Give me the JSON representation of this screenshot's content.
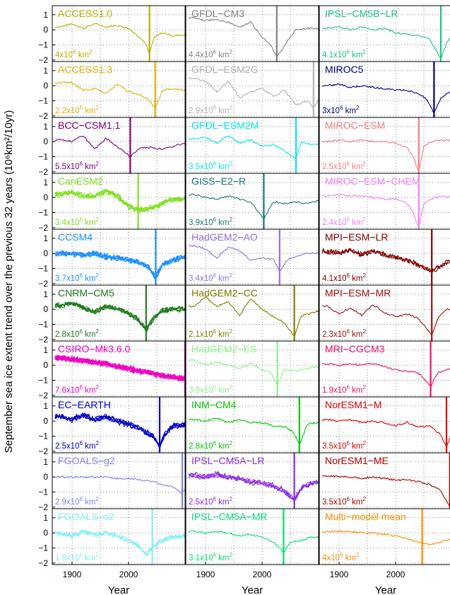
{
  "figure": {
    "ylabel": "September sea ice extent trend over the previous 32 years (10⁶km²/10yr)",
    "xlabel": "Year"
  },
  "chart_data": {
    "type": "line",
    "layout": "small-multiples",
    "grid": true,
    "ylabel": "September sea ice extent trend over the previous 32 years (10⁶km²/10yr)",
    "xlabel": "Year",
    "xlim": [
      1865,
      2100
    ],
    "ylim": [
      -2.1,
      1.6
    ],
    "xticks": [
      1900,
      2000
    ],
    "yticks": [
      1,
      0,
      -1,
      -2
    ],
    "panels": [
      {
        "name": "ACCESS1.0",
        "extent": "4x10⁶ km²",
        "color": "#b5b000",
        "ensemble": 1,
        "year": 2037,
        "x": [
          1880,
          1900,
          1920,
          1940,
          1960,
          1980,
          2000,
          2020,
          2030,
          2037,
          2045,
          2060,
          2080,
          2100
        ],
        "y": [
          0.2,
          0.4,
          0.1,
          0.4,
          0.2,
          0.3,
          0.1,
          -0.5,
          -0.9,
          -1.6,
          -0.5,
          -0.2,
          -0.4,
          -0.3
        ]
      },
      {
        "name": "GFDL−CM3",
        "extent": "4.4x10⁶ km²",
        "color": "#808080",
        "ensemble": 1,
        "year": 2026,
        "x": [
          1880,
          1900,
          1920,
          1940,
          1960,
          1980,
          2000,
          2015,
          2026,
          2040,
          2060,
          2080,
          2100
        ],
        "y": [
          0.8,
          0.6,
          0.7,
          0.5,
          0.2,
          0.5,
          -0.5,
          -1.0,
          -1.8,
          -1.0,
          0.0,
          0.1,
          0.1
        ]
      },
      {
        "name": "IPSL−CM5B−LR",
        "extent": "4.1x10⁶ km²",
        "color": "#1fc088",
        "ensemble": 1,
        "year": 2080,
        "x": [
          1880,
          1900,
          1920,
          1940,
          1960,
          1980,
          2000,
          2020,
          2040,
          2060,
          2080,
          2090,
          2100
        ],
        "y": [
          0.1,
          0.2,
          0.0,
          0.2,
          0.0,
          0.1,
          -0.2,
          -0.3,
          -0.4,
          -0.6,
          -1.9,
          -0.9,
          -0.4
        ]
      },
      {
        "name": "ACCESS1.3",
        "extent": "2.2x10⁶ km²",
        "color": "#e0b000",
        "ensemble": 1,
        "year": 2047,
        "x": [
          1880,
          1900,
          1920,
          1940,
          1960,
          1980,
          2000,
          2020,
          2035,
          2047,
          2060,
          2080,
          2100
        ],
        "y": [
          0.2,
          0.2,
          -0.3,
          -0.2,
          -0.5,
          0.1,
          -0.4,
          -0.6,
          -0.9,
          -1.5,
          -0.3,
          -0.2,
          -0.3
        ]
      },
      {
        "name": "GFDL−ESM2G",
        "extent": "2.9x10⁶ km²",
        "color": "#b0b0b0",
        "ensemble": 1,
        "year": 2091,
        "x": [
          1880,
          1900,
          1920,
          1940,
          1960,
          1980,
          2000,
          2020,
          2040,
          2060,
          2080,
          2091,
          2100
        ],
        "y": [
          0.5,
          0.3,
          -0.4,
          0.3,
          -0.8,
          -0.4,
          -0.2,
          -0.7,
          -0.3,
          -1.3,
          -1.0,
          -1.5,
          -0.9
        ]
      },
      {
        "name": "MIROC5",
        "extent": "3x10⁶ km²",
        "color": "#000080",
        "ensemble": 1,
        "year": 2068,
        "x": [
          1880,
          1900,
          1920,
          1940,
          1960,
          1980,
          2000,
          2020,
          2040,
          2055,
          2068,
          2080,
          2100
        ],
        "y": [
          0.0,
          0.1,
          -0.1,
          0.0,
          -0.1,
          -0.2,
          -0.3,
          -0.3,
          -0.5,
          -0.9,
          -1.8,
          -0.8,
          -0.3
        ]
      },
      {
        "name": "BCC−CSM1.1",
        "extent": "5.5x10⁶ km²",
        "color": "#800080",
        "ensemble": 1,
        "year": 2003,
        "x": [
          1880,
          1900,
          1920,
          1940,
          1960,
          1980,
          2003,
          2020,
          2040,
          2060,
          2080,
          2100
        ],
        "y": [
          0.1,
          0.0,
          0.4,
          -0.5,
          0.2,
          -0.3,
          -1.0,
          -0.4,
          -0.4,
          -0.5,
          -0.3,
          -0.1
        ]
      },
      {
        "name": "GFDL−ESM2M",
        "extent": "3.5x10⁶ km²",
        "color": "#00e8e8",
        "ensemble": 1,
        "year": 2060,
        "x": [
          1880,
          1900,
          1920,
          1940,
          1960,
          1980,
          2000,
          2020,
          2040,
          2060,
          2070,
          2085,
          2100
        ],
        "y": [
          0.2,
          0.3,
          -0.1,
          0.4,
          -0.1,
          0.1,
          -0.3,
          -0.2,
          -0.6,
          -1.1,
          0.0,
          -0.2,
          -0.2
        ]
      },
      {
        "name": "MIROC−ESM",
        "extent": "2.5x10⁶ km²",
        "color": "#f08080",
        "ensemble": 1,
        "year": 2041,
        "x": [
          1880,
          1900,
          1920,
          1940,
          1960,
          1980,
          2000,
          2020,
          2030,
          2041,
          2050,
          2070,
          2100
        ],
        "y": [
          0.0,
          0.1,
          0.0,
          0.1,
          0.0,
          0.0,
          -0.1,
          -0.4,
          -0.9,
          -2.0,
          -0.3,
          0.1,
          0.1
        ]
      },
      {
        "name": "CanESM2",
        "extent": "3.4x10⁶ km²",
        "color": "#80e020",
        "ensemble": 5,
        "year": 2017,
        "x": [
          1880,
          1900,
          1920,
          1940,
          1960,
          1980,
          2000,
          2017,
          2030,
          2050,
          2070,
          2100
        ],
        "y": [
          0.2,
          0.3,
          0.1,
          0.1,
          0.4,
          0.1,
          -0.6,
          -0.8,
          -0.8,
          -0.6,
          -0.2,
          -0.1
        ]
      },
      {
        "name": "GISS−E2−R",
        "extent": "3.9x10⁶ km²",
        "color": "#1a7878",
        "ensemble": 1,
        "year": 2003,
        "x": [
          1880,
          1900,
          1920,
          1940,
          1960,
          1980,
          2003,
          2020,
          2040,
          2060,
          2080,
          2100
        ],
        "y": [
          0.2,
          0.0,
          -0.1,
          0.1,
          -0.1,
          -0.3,
          -1.4,
          -0.3,
          -0.4,
          -0.3,
          -0.4,
          -0.2
        ]
      },
      {
        "name": "MIROC−ESM−CHEM",
        "extent": "2.4x10⁶ km²",
        "color": "#f080f0",
        "ensemble": 1,
        "year": 2041,
        "x": [
          1880,
          1900,
          1920,
          1940,
          1960,
          1980,
          2000,
          2020,
          2030,
          2041,
          2050,
          2070,
          2100
        ],
        "y": [
          0.1,
          0.2,
          0.1,
          0.1,
          0.0,
          -0.1,
          -0.1,
          -0.4,
          -0.9,
          -2.0,
          -0.4,
          0.0,
          0.1
        ]
      },
      {
        "name": "CCSM4",
        "extent": "3.7x10⁶ km²",
        "color": "#1e90ff",
        "ensemble": 6,
        "year": 2048,
        "x": [
          1880,
          1900,
          1920,
          1940,
          1960,
          1980,
          2000,
          2020,
          2035,
          2048,
          2060,
          2080,
          2100
        ],
        "y": [
          0.0,
          0.0,
          -0.1,
          0.0,
          -0.2,
          -0.3,
          -0.4,
          -0.6,
          -0.9,
          -1.6,
          -0.7,
          -0.4,
          -0.2
        ]
      },
      {
        "name": "HadGEM2−AO",
        "extent": "3.4x10⁶ km²",
        "color": "#9370db",
        "ensemble": 1,
        "year": 2031,
        "x": [
          1880,
          1900,
          1920,
          1940,
          1960,
          1980,
          2000,
          2020,
          2031,
          2045,
          2060,
          2080,
          2100
        ],
        "y": [
          0.5,
          0.3,
          -0.3,
          0.4,
          0.2,
          -0.5,
          -0.3,
          -0.4,
          -1.2,
          -0.4,
          -0.2,
          0.0,
          0.0
        ]
      },
      {
        "name": "MPI−ESM−LR",
        "extent": "4.1x10⁶ km²",
        "color": "#800000",
        "ensemble": 3,
        "year": 2064,
        "x": [
          1880,
          1900,
          1920,
          1940,
          1960,
          1980,
          2000,
          2020,
          2040,
          2064,
          2075,
          2090,
          2100
        ],
        "y": [
          0.1,
          0.0,
          0.2,
          -0.1,
          0.1,
          -0.1,
          -0.3,
          -0.5,
          -0.8,
          -1.2,
          -1.0,
          -0.6,
          -0.5
        ]
      },
      {
        "name": "CNRM−CM5",
        "extent": "2.8x10⁶ km²",
        "color": "#1e7a1e",
        "ensemble": 5,
        "year": 2031,
        "x": [
          1880,
          1900,
          1920,
          1940,
          1960,
          1980,
          2000,
          2015,
          2031,
          2045,
          2060,
          2080,
          2100
        ],
        "y": [
          0.2,
          0.4,
          0.1,
          -0.2,
          0.2,
          0.0,
          -0.3,
          -0.6,
          -1.4,
          -0.6,
          -0.1,
          0.0,
          0.0
        ]
      },
      {
        "name": "HadGEM2−CC",
        "extent": "2.1x10⁶ km²",
        "color": "#7f7a00",
        "ensemble": 1,
        "year": 2057,
        "x": [
          1880,
          1900,
          1920,
          1940,
          1960,
          1980,
          2000,
          2020,
          2040,
          2057,
          2070,
          2085,
          2100
        ],
        "y": [
          0.2,
          0.8,
          0.2,
          0.5,
          -0.4,
          0.7,
          0.0,
          -0.5,
          -0.9,
          -1.8,
          -0.4,
          -0.3,
          -0.1
        ]
      },
      {
        "name": "MPI−ESM−MR",
        "extent": "2.3x10⁶ km²",
        "color": "#a01010",
        "ensemble": 1,
        "year": 2064,
        "x": [
          1880,
          1900,
          1920,
          1940,
          1960,
          1980,
          2000,
          2020,
          2040,
          2064,
          2075,
          2090,
          2100
        ],
        "y": [
          0.2,
          -0.3,
          0.1,
          -0.4,
          0.3,
          -0.2,
          -0.5,
          -0.3,
          -0.6,
          -1.7,
          -0.6,
          0.0,
          0.0
        ]
      },
      {
        "name": "CSIRO−Mk3.6.0",
        "extent": "7.6x10⁶ km²",
        "color": "#f000c0",
        "ensemble": 10,
        "year": 2100,
        "x": [
          1880,
          1900,
          1920,
          1940,
          1960,
          1980,
          2000,
          2020,
          2040,
          2060,
          2080,
          2100
        ],
        "y": [
          0.5,
          0.4,
          0.3,
          0.2,
          0.1,
          -0.1,
          -0.2,
          -0.4,
          -0.5,
          -0.7,
          -0.8,
          -0.9
        ]
      },
      {
        "name": "HadGEM2−ES",
        "extent": "3.9x10⁶ km²",
        "color": "#8cf08c",
        "ensemble": 1,
        "year": 2027,
        "x": [
          1880,
          1900,
          1920,
          1940,
          1960,
          1980,
          2000,
          2015,
          2027,
          2040,
          2060,
          2080,
          2100
        ],
        "y": [
          0.3,
          0.0,
          0.2,
          0.0,
          -0.2,
          0.1,
          -0.3,
          -0.5,
          -1.3,
          -0.3,
          -0.4,
          -0.2,
          -0.1
        ]
      },
      {
        "name": "MRI−CGCM3",
        "extent": "1.9x10⁶ km²",
        "color": "#e8106a",
        "ensemble": 1,
        "year": 2062,
        "x": [
          1880,
          1900,
          1920,
          1940,
          1960,
          1980,
          2000,
          2020,
          2040,
          2062,
          2075,
          2090,
          2100
        ],
        "y": [
          0.1,
          0.0,
          0.1,
          0.0,
          0.1,
          -0.1,
          -0.3,
          -0.4,
          -0.5,
          -1.4,
          -0.5,
          -0.3,
          -0.3
        ]
      },
      {
        "name": "EC−EARTH",
        "extent": "2.5x10⁶ km²",
        "color": "#0000c8",
        "ensemble": 5,
        "year": 2055,
        "x": [
          1880,
          1900,
          1920,
          1940,
          1960,
          1980,
          2000,
          2020,
          2040,
          2055,
          2065,
          2080,
          2100
        ],
        "y": [
          0.3,
          0.1,
          0.4,
          0.1,
          0.3,
          0.0,
          -0.2,
          -0.5,
          -0.9,
          -1.7,
          -0.8,
          -0.3,
          -0.2
        ]
      },
      {
        "name": "INM−CM4",
        "extent": "2.8x10⁶ km²",
        "color": "#00c800",
        "ensemble": 1,
        "year": 2066,
        "x": [
          1880,
          1900,
          1920,
          1940,
          1960,
          1980,
          2000,
          2020,
          2040,
          2055,
          2066,
          2080,
          2100
        ],
        "y": [
          0.1,
          0.0,
          0.2,
          -0.1,
          0.1,
          -0.1,
          -0.1,
          -0.3,
          -0.4,
          -0.7,
          -1.6,
          -0.2,
          -0.1
        ]
      },
      {
        "name": "NorESM1−M",
        "extent": "3.5x10⁶ km²",
        "color": "#e00000",
        "ensemble": 1,
        "year": 2090,
        "x": [
          1880,
          1900,
          1920,
          1940,
          1960,
          1980,
          2000,
          2020,
          2040,
          2060,
          2080,
          2090,
          2100
        ],
        "y": [
          0.1,
          0.0,
          0.1,
          -0.1,
          0.0,
          -0.1,
          -0.3,
          -0.1,
          -0.4,
          -0.3,
          -0.9,
          -1.7,
          -0.8
        ]
      },
      {
        "name": "FGOALS−g2",
        "extent": "2.9x10⁶ km²",
        "color": "#8080f0",
        "ensemble": 1,
        "year": 2095,
        "x": [
          1880,
          1900,
          1920,
          1940,
          1960,
          1980,
          2000,
          2020,
          2040,
          2060,
          2080,
          2095,
          2100
        ],
        "y": [
          0.0,
          0.0,
          0.0,
          0.0,
          0.0,
          -0.1,
          -0.1,
          -0.2,
          -0.3,
          -0.5,
          -0.7,
          -1.1,
          -0.8
        ]
      },
      {
        "name": "IPSL−CM5A−LR",
        "extent": "2.5x10⁶ km²",
        "color": "#8a2be2",
        "ensemble": 4,
        "year": 2057,
        "x": [
          1880,
          1900,
          1920,
          1940,
          1960,
          1980,
          2000,
          2020,
          2040,
          2057,
          2070,
          2085,
          2100
        ],
        "y": [
          0.1,
          0.0,
          0.2,
          0.0,
          -0.1,
          -0.3,
          -0.4,
          -0.6,
          -0.9,
          -1.5,
          -0.7,
          -0.4,
          -0.3
        ]
      },
      {
        "name": "NorESM1−ME",
        "extent": "3.5x10⁶ km²",
        "color": "#b00000",
        "ensemble": 1,
        "year": 2096,
        "x": [
          1880,
          1900,
          1920,
          1940,
          1960,
          1980,
          2000,
          2020,
          2040,
          2060,
          2080,
          2096,
          2100
        ],
        "y": [
          0.1,
          0.0,
          0.0,
          -0.1,
          0.0,
          -0.1,
          -0.2,
          -0.2,
          -0.3,
          -0.5,
          -0.9,
          -2.0,
          -1.3
        ]
      },
      {
        "name": "FGOALS−s2",
        "extent": "1.9x10⁶ km²",
        "color": "#80f0f0",
        "ensemble": 3,
        "year": 2042,
        "x": [
          1880,
          1900,
          1920,
          1940,
          1960,
          1980,
          2000,
          2020,
          2030,
          2042,
          2055,
          2075,
          2100
        ],
        "y": [
          0.0,
          -0.2,
          0.1,
          -0.1,
          0.0,
          -0.2,
          -0.5,
          -0.9,
          -1.4,
          -1.0,
          -0.6,
          -0.3,
          -0.2
        ]
      },
      {
        "name": "IPSL−CM5A−MR",
        "extent": "3.1x10⁶ km²",
        "color": "#00e070",
        "ensemble": 1,
        "year": 2038,
        "x": [
          1880,
          1900,
          1920,
          1940,
          1960,
          1980,
          2000,
          2020,
          2038,
          2050,
          2070,
          2085,
          2100
        ],
        "y": [
          0.1,
          0.0,
          0.1,
          0.0,
          -0.2,
          -0.1,
          -0.3,
          -0.6,
          -1.3,
          -0.6,
          -0.5,
          -0.3,
          -0.3
        ]
      },
      {
        "name": "Multi−model mean",
        "extent": "4x10⁶ km²",
        "color": "#ff8c00",
        "ensemble": 1,
        "year": 2047,
        "x": [
          1880,
          1900,
          1920,
          1940,
          1960,
          1980,
          2000,
          2020,
          2040,
          2060,
          2080,
          2100
        ],
        "y": [
          0.1,
          0.1,
          0.1,
          0.0,
          0.0,
          -0.1,
          -0.2,
          -0.4,
          -0.6,
          -0.8,
          -0.6,
          -0.4
        ]
      }
    ]
  }
}
